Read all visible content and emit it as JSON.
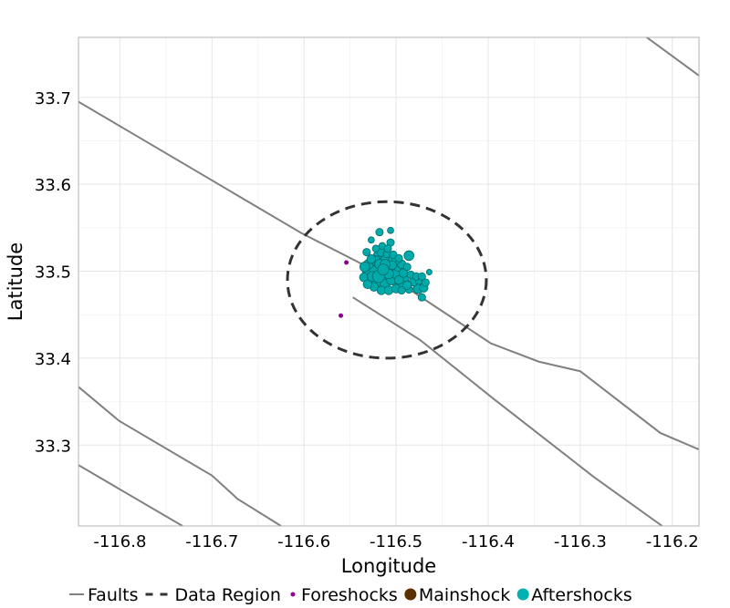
{
  "chart_data": {
    "type": "scatter",
    "title": "",
    "xlabel": "Longitude",
    "ylabel": "Latitude",
    "xlim": [
      -116.845,
      -116.171
    ],
    "ylim": [
      33.207,
      33.769
    ],
    "grid": true,
    "legend_position": "bottom",
    "x_ticks": [
      -116.8,
      -116.7,
      -116.6,
      -116.5,
      -116.4,
      -116.3,
      -116.2
    ],
    "x_tick_labels": [
      "-116.8",
      "-116.7",
      "-116.6",
      "-116.5",
      "-116.4",
      "-116.3",
      "-116.2"
    ],
    "y_ticks": [
      33.3,
      33.4,
      33.5,
      33.6,
      33.7
    ],
    "y_tick_labels": [
      "33.3",
      "33.4",
      "33.5",
      "33.6",
      "33.7"
    ],
    "legend": [
      {
        "label": "Faults",
        "kind": "line",
        "color": "#808080"
      },
      {
        "label": "Data Region",
        "kind": "dash",
        "color": "#333333"
      },
      {
        "label": "Foreshocks",
        "kind": "point",
        "color": "#9b009b"
      },
      {
        "label": "Mainshock",
        "kind": "bigpoint",
        "color": "#5c3000"
      },
      {
        "label": "Aftershocks",
        "kind": "bigpoint",
        "color": "#00b0b0"
      }
    ],
    "faults": [
      [
        [
          -116.845,
          33.695
        ],
        [
          -116.603,
          33.544
        ],
        [
          -116.494,
          33.485
        ],
        [
          -116.397,
          33.417
        ],
        [
          -116.345,
          33.396
        ],
        [
          -116.3,
          33.385
        ],
        [
          -116.213,
          33.314
        ],
        [
          -116.171,
          33.295
        ]
      ],
      [
        [
          -116.547,
          33.47
        ],
        [
          -116.474,
          33.421
        ],
        [
          -116.395,
          33.354
        ],
        [
          -116.286,
          33.264
        ],
        [
          -116.211,
          33.207
        ]
      ],
      [
        [
          -116.229,
          33.77
        ],
        [
          -116.171,
          33.725
        ]
      ],
      [
        [
          -116.845,
          33.367
        ],
        [
          -116.801,
          33.328
        ],
        [
          -116.7,
          33.265
        ],
        [
          -116.672,
          33.238
        ],
        [
          -116.625,
          33.207
        ]
      ],
      [
        [
          -116.845,
          33.277
        ],
        [
          -116.732,
          33.207
        ]
      ]
    ],
    "data_region": {
      "center": [
        -116.51,
        33.49
      ],
      "radius_lon": 0.108,
      "radius_lat": 0.09
    },
    "foreshocks": [
      [
        -116.554,
        33.51
      ],
      [
        -116.56,
        33.449
      ]
    ],
    "mainshock": [],
    "aftershocks": [
      [
        -116.506,
        33.547,
        1.5
      ],
      [
        -116.518,
        33.545,
        2
      ],
      [
        -116.527,
        33.536,
        1.5
      ],
      [
        -116.506,
        33.533,
        2
      ],
      [
        -116.532,
        33.522,
        2
      ],
      [
        -116.486,
        33.518,
        3
      ],
      [
        -116.464,
        33.499,
        1.2
      ],
      [
        -116.472,
        33.47,
        2
      ],
      [
        -116.476,
        33.48,
        3
      ],
      [
        -116.481,
        33.488,
        2.5
      ],
      [
        -116.475,
        33.489,
        2
      ],
      [
        -116.47,
        33.481,
        2.5
      ],
      [
        -116.49,
        33.492,
        2
      ],
      [
        -116.495,
        33.485,
        3.2
      ],
      [
        -116.486,
        33.479,
        2
      ],
      [
        -116.51,
        33.502,
        4
      ],
      [
        -116.515,
        33.495,
        3.5
      ],
      [
        -116.52,
        33.505,
        3
      ],
      [
        -116.525,
        33.5,
        3.5
      ],
      [
        -116.53,
        33.508,
        3
      ],
      [
        -116.532,
        33.497,
        2.5
      ],
      [
        -116.528,
        33.49,
        3
      ],
      [
        -116.52,
        33.488,
        3.5
      ],
      [
        -116.512,
        33.485,
        3
      ],
      [
        -116.505,
        33.49,
        3
      ],
      [
        -116.5,
        33.497,
        3
      ],
      [
        -116.498,
        33.505,
        2.5
      ],
      [
        -116.505,
        33.512,
        3
      ],
      [
        -116.513,
        33.515,
        3
      ],
      [
        -116.52,
        33.518,
        2.5
      ],
      [
        -116.516,
        33.522,
        2.5
      ],
      [
        -116.51,
        33.52,
        2
      ],
      [
        -116.522,
        33.512,
        3
      ],
      [
        -116.527,
        33.514,
        2.5
      ],
      [
        -116.534,
        33.505,
        3
      ],
      [
        -116.535,
        33.493,
        2.5
      ],
      [
        -116.524,
        33.482,
        2.5
      ],
      [
        -116.516,
        33.478,
        2.5
      ],
      [
        -116.508,
        33.478,
        2.5
      ],
      [
        -116.5,
        33.48,
        2.5
      ],
      [
        -116.494,
        33.478,
        2
      ],
      [
        -116.488,
        33.484,
        2.5
      ],
      [
        -116.497,
        33.49,
        2.5
      ],
      [
        -116.492,
        33.498,
        2.5
      ],
      [
        -116.494,
        33.508,
        2.5
      ],
      [
        -116.5,
        33.513,
        2.5
      ],
      [
        -116.504,
        33.507,
        2.5
      ],
      [
        -116.518,
        33.508,
        3
      ],
      [
        -116.512,
        33.508,
        3
      ],
      [
        -116.508,
        33.497,
        3
      ],
      [
        -116.526,
        33.494,
        3
      ],
      [
        -116.531,
        33.485,
        2.5
      ],
      [
        -116.484,
        33.496,
        2
      ],
      [
        -116.488,
        33.505,
        2
      ],
      [
        -116.478,
        33.494,
        2
      ],
      [
        -116.472,
        33.494,
        2
      ],
      [
        -116.468,
        33.487,
        2
      ],
      [
        -116.503,
        33.519,
        2
      ],
      [
        -116.497,
        33.515,
        2
      ],
      [
        -116.515,
        33.529,
        1.8
      ],
      [
        -116.522,
        33.526,
        1.8
      ],
      [
        -116.509,
        33.526,
        2
      ],
      [
        -116.519,
        33.494,
        4
      ],
      [
        -116.514,
        33.502,
        3.5
      ]
    ]
  }
}
